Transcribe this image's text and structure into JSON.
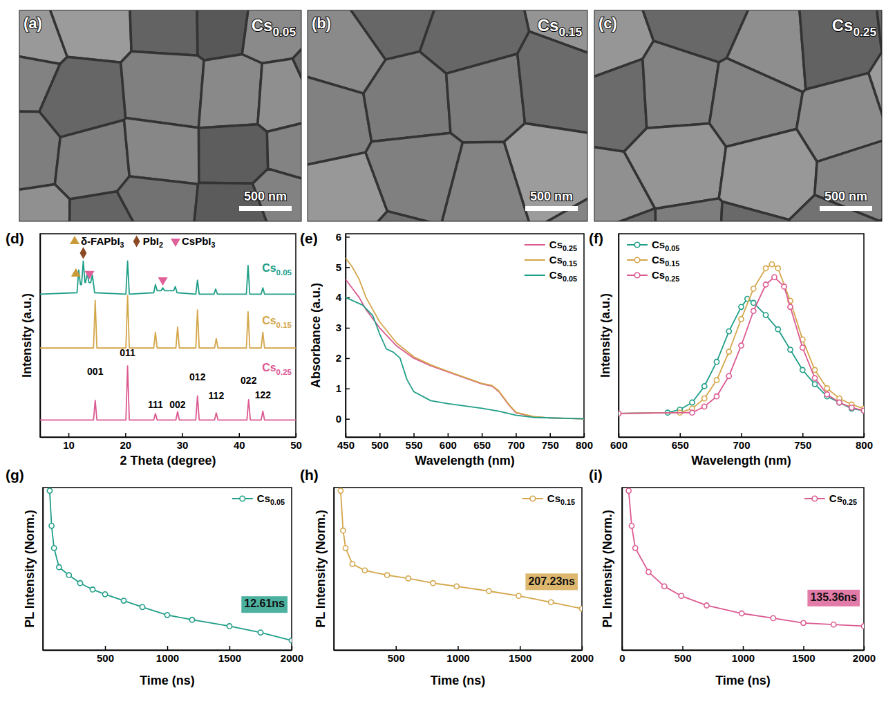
{
  "chart_data": [
    {
      "type": "image",
      "label": "(a)",
      "title": "Cs0.05",
      "scale_bar": "500 nm"
    },
    {
      "type": "image",
      "label": "(b)",
      "title": "Cs0.15",
      "scale_bar": "500 nm"
    },
    {
      "type": "image",
      "label": "(c)",
      "title": "Cs0.25",
      "scale_bar": "500 nm"
    },
    {
      "type": "line",
      "label": "(d)",
      "x_label": "2 Theta (degree)",
      "y_label": "Intensity (a.u.)",
      "xlim": [
        5,
        50
      ],
      "xticks": [
        10,
        20,
        30,
        40,
        50
      ],
      "ylim": [
        0,
        100
      ],
      "tick_labels": "x",
      "legend": "top",
      "phases": [
        {
          "name": "δ-FAPbI3",
          "color": "#c99a3a",
          "marker": "triangle-up",
          "x": [
            11.3
          ],
          "y": [
            80.3
          ]
        },
        {
          "name": "PbI2",
          "color": "#8b4a24",
          "marker": "diamond",
          "x": [
            12.6
          ],
          "y": [
            90.5
          ]
        },
        {
          "name": "CsPbI3",
          "color": "#e0609a",
          "marker": "triangle-down",
          "x": [
            13.7,
            26.6
          ],
          "y": [
            80.3,
            77.2
          ]
        }
      ],
      "series": [
        {
          "name": "Cs0.05",
          "color": "#1f9e87",
          "x": [
            5,
            11.5,
            11.8,
            12.1,
            12.3,
            12.6,
            12.9,
            13.0,
            13.3,
            13.6,
            13.9,
            14.2,
            14.6,
            20.1,
            20.4,
            20.7,
            25.0,
            25.3,
            25.6,
            26.3,
            26.6,
            26.9,
            28.5,
            28.8,
            29.1,
            32.4,
            32.7,
            33.0,
            35.6,
            35.9,
            36.2,
            41.3,
            41.6,
            41.9,
            43.9,
            44.2,
            44.5,
            50
          ],
          "values": [
            70.3,
            71,
            82.2,
            75,
            75,
            86.6,
            76,
            76,
            80.3,
            76,
            76,
            79.7,
            71,
            70.3,
            86.6,
            70.3,
            71,
            75,
            72,
            72,
            73.4,
            72,
            72,
            74,
            71,
            70.3,
            77.2,
            70.3,
            70.3,
            72.8,
            70.3,
            70.3,
            84.4,
            70.3,
            70.3,
            73.4,
            70.3,
            70.3
          ]
        },
        {
          "name": "Cs0.15",
          "color": "#d4a64a",
          "x": [
            5,
            14.4,
            14.7,
            15.0,
            20.1,
            20.4,
            20.7,
            25.0,
            25.3,
            25.6,
            28.9,
            29.2,
            29.5,
            32.4,
            32.7,
            33.0,
            35.7,
            36.0,
            36.3,
            41.3,
            41.6,
            41.9,
            43.9,
            44.2,
            44.5,
            50
          ],
          "values": [
            43.8,
            43.8,
            67.2,
            43.8,
            43.8,
            69.7,
            43.8,
            43.8,
            51.6,
            43.8,
            43.8,
            54.1,
            43.8,
            43.8,
            62.5,
            43.8,
            43.8,
            48.4,
            43.8,
            43.8,
            61.6,
            43.8,
            43.8,
            51.6,
            43.8,
            43.8
          ]
        },
        {
          "name": "Cs0.25",
          "color": "#dc5a92",
          "x": [
            5,
            14.4,
            14.7,
            15.0,
            20.1,
            20.4,
            20.7,
            25.0,
            25.3,
            25.6,
            28.9,
            29.2,
            29.5,
            32.4,
            32.7,
            33.0,
            35.7,
            36.0,
            36.3,
            41.4,
            41.7,
            42.0,
            43.9,
            44.2,
            44.5,
            50
          ],
          "values": [
            8.4,
            8.4,
            18.1,
            8.4,
            8.4,
            35,
            8.4,
            8.4,
            11.6,
            8.4,
            8.4,
            12.5,
            8.4,
            8.4,
            20.3,
            8.4,
            8.4,
            11.9,
            8.4,
            8.4,
            18.4,
            8.4,
            8.4,
            12.8,
            8.4,
            8.4
          ]
        }
      ],
      "annotations": [
        {
          "text": "001",
          "x": 14.7,
          "y": 31.9
        },
        {
          "text": "011",
          "x": 20.4,
          "y": 41
        },
        {
          "text": "111",
          "x": 25.3,
          "y": 15.5
        },
        {
          "text": "002",
          "x": 29.2,
          "y": 15.5
        },
        {
          "text": "012",
          "x": 32.7,
          "y": 29.1
        },
        {
          "text": "112",
          "x": 36.0,
          "y": 20
        },
        {
          "text": "022",
          "x": 41.7,
          "y": 27.5
        },
        {
          "text": "122",
          "x": 44.2,
          "y": 20.3
        }
      ]
    },
    {
      "type": "line",
      "label": "(e)",
      "x_label": "Wavelength (nm)",
      "y_label": "Absorbance (a.u.)",
      "xlim": [
        450,
        800
      ],
      "xticks": [
        450,
        500,
        550,
        600,
        650,
        700,
        750,
        800
      ],
      "ylim": [
        -0.6,
        6.1
      ],
      "yticks": [
        0,
        1,
        2,
        3,
        4,
        5,
        6
      ],
      "legend": "top-right",
      "series": [
        {
          "name": "Cs0.25",
          "color": "#dc5a92",
          "x": [
            450,
            460,
            470,
            480,
            500,
            525,
            550,
            575,
            600,
            625,
            650,
            665,
            675,
            690,
            700,
            725,
            750,
            800
          ],
          "values": [
            4.6,
            4.3,
            4.0,
            3.6,
            3.0,
            2.4,
            2.0,
            1.75,
            1.55,
            1.35,
            1.15,
            1.08,
            0.9,
            0.45,
            0.2,
            0.07,
            0.03,
            0
          ]
        },
        {
          "name": "Cs0.15",
          "color": "#d4a64a",
          "x": [
            450,
            460,
            470,
            480,
            500,
            525,
            550,
            575,
            600,
            625,
            650,
            665,
            675,
            690,
            700,
            725,
            750,
            800
          ],
          "values": [
            5.3,
            5.0,
            4.6,
            4.0,
            3.2,
            2.5,
            2.05,
            1.78,
            1.57,
            1.37,
            1.17,
            1.1,
            0.92,
            0.47,
            0.22,
            0.08,
            0.03,
            0
          ]
        },
        {
          "name": "Cs0.05",
          "color": "#1f9e87",
          "x": [
            450,
            475,
            490,
            500,
            510,
            520,
            530,
            540,
            550,
            575,
            600,
            650,
            675,
            700,
            725,
            800
          ],
          "values": [
            4.0,
            3.75,
            3.4,
            2.8,
            2.3,
            2.2,
            2.0,
            1.3,
            0.9,
            0.6,
            0.5,
            0.35,
            0.25,
            0.12,
            0.05,
            0
          ]
        }
      ]
    },
    {
      "type": "line",
      "label": "(f)",
      "x_label": "Wavelength (nm)",
      "y_label": "Intensity (a.u.)",
      "xlim": [
        600,
        800
      ],
      "xticks": [
        600,
        650,
        700,
        750,
        800
      ],
      "ylim": [
        0,
        100
      ],
      "tick_labels": "x",
      "legend": "top-left",
      "series": [
        {
          "name": "Cs0.05",
          "color": "#1f9e87",
          "marker": "circle",
          "x": [
            600,
            640,
            650,
            660,
            670,
            680,
            690,
            700,
            705,
            710,
            720,
            730,
            740,
            750,
            760,
            770,
            780,
            790,
            800
          ],
          "values": [
            11.6,
            12,
            13.5,
            17,
            25,
            37,
            52,
            64,
            68,
            66,
            60,
            53,
            43,
            33,
            26,
            20,
            17,
            14,
            13
          ]
        },
        {
          "name": "Cs0.15",
          "color": "#d4a64a",
          "marker": "circle",
          "x": [
            600,
            650,
            660,
            670,
            680,
            690,
            700,
            710,
            720,
            725,
            730,
            740,
            750,
            760,
            770,
            780,
            790,
            800
          ],
          "values": [
            11.6,
            12,
            14,
            19,
            28,
            42,
            58,
            73,
            83,
            85,
            83,
            67,
            48,
            33,
            24,
            19,
            16,
            14
          ]
        },
        {
          "name": "Cs0.25",
          "color": "#dc5a92",
          "marker": "circle",
          "x": [
            600,
            660,
            670,
            680,
            690,
            700,
            710,
            720,
            727,
            735,
            740,
            750,
            760,
            770,
            780,
            790,
            800
          ],
          "values": [
            11.6,
            12,
            15,
            20,
            30,
            45,
            62,
            75,
            78.6,
            74,
            64,
            44,
            29,
            21,
            17,
            14.5,
            13
          ]
        }
      ]
    },
    {
      "type": "line",
      "label": "(g)",
      "x_label": "Time (ns)",
      "y_label": "PL Intensity (Norm.)",
      "xlim": [
        0,
        2000
      ],
      "xticks": [
        500,
        1000,
        1500,
        2000
      ],
      "ylim": [
        0,
        1.02
      ],
      "tick_labels": "x",
      "legend": "top-right",
      "series": [
        {
          "name": "Cs0.05",
          "color": "#1f9e87",
          "marker": "circle",
          "x": [
            55,
            70,
            90,
            130,
            210,
            300,
            400,
            500,
            650,
            800,
            1000,
            1200,
            1500,
            1750,
            2000
          ],
          "values": [
            1.0,
            0.78,
            0.64,
            0.52,
            0.47,
            0.42,
            0.38,
            0.35,
            0.31,
            0.27,
            0.22,
            0.19,
            0.15,
            0.11,
            0.06
          ]
        }
      ],
      "annotations": [
        {
          "text": "12.61ns"
        }
      ]
    },
    {
      "type": "line",
      "label": "(h)",
      "x_label": "Time (ns)",
      "y_label": "PL Intensity (Norm.)",
      "xlim": [
        0,
        2000
      ],
      "xticks": [
        500,
        1000,
        1500,
        2000
      ],
      "ylim": [
        0,
        1.02
      ],
      "tick_labels": "x",
      "legend": "top-right",
      "series": [
        {
          "name": "Cs0.15",
          "color": "#d4a64a",
          "marker": "circle",
          "x": [
            55,
            75,
            95,
            150,
            250,
            430,
            600,
            800,
            990,
            1250,
            1490,
            1750,
            2000
          ],
          "values": [
            1.0,
            0.75,
            0.64,
            0.54,
            0.5,
            0.47,
            0.45,
            0.42,
            0.4,
            0.37,
            0.34,
            0.3,
            0.26
          ]
        }
      ],
      "annotations": [
        {
          "text": "207.23ns"
        }
      ]
    },
    {
      "type": "line",
      "label": "(i)",
      "x_label": "Time (ns)",
      "y_label": "PL Intensity (Norm.)",
      "xlim": [
        0,
        2000
      ],
      "xticks": [
        0,
        500,
        1000,
        1500,
        2000
      ],
      "ylim": [
        0,
        1.02
      ],
      "tick_labels": "x",
      "legend": "top-right",
      "series": [
        {
          "name": "Cs0.25",
          "color": "#dc5a92",
          "marker": "circle",
          "x": [
            55,
            80,
            110,
            220,
            350,
            490,
            700,
            990,
            1250,
            1500,
            1750,
            2000
          ],
          "values": [
            1.0,
            0.78,
            0.64,
            0.49,
            0.4,
            0.34,
            0.28,
            0.23,
            0.2,
            0.17,
            0.16,
            0.15
          ]
        }
      ],
      "annotations": [
        {
          "text": "135.36ns"
        }
      ]
    }
  ]
}
